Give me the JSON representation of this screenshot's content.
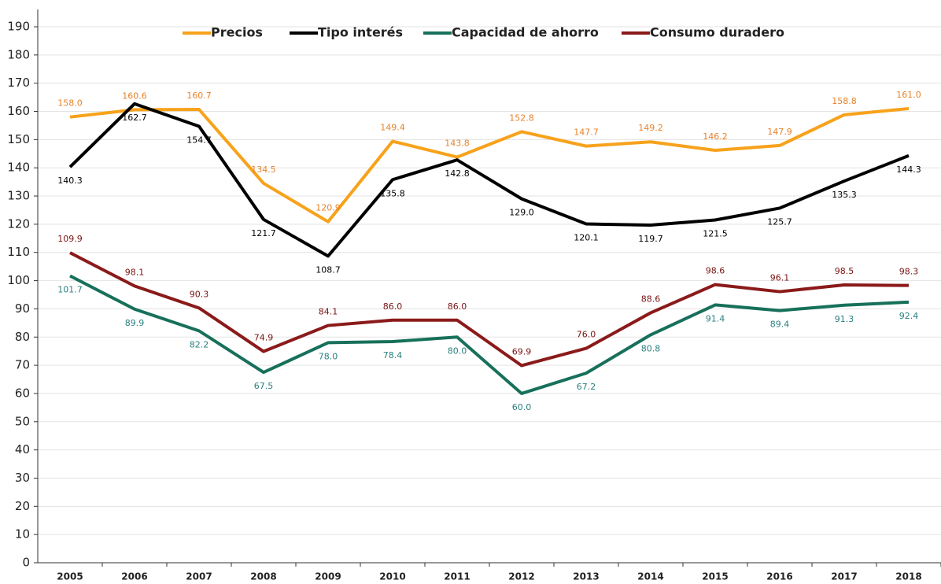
{
  "chart_data": {
    "type": "line",
    "categories": [
      "2005",
      "2006",
      "2007",
      "2008",
      "2009",
      "2010",
      "2011",
      "2012",
      "2013",
      "2014",
      "2015",
      "2016",
      "2017",
      "2018"
    ],
    "ylim": [
      0,
      190
    ],
    "yticks": [
      0,
      10,
      20,
      30,
      40,
      50,
      60,
      70,
      80,
      90,
      100,
      110,
      120,
      130,
      140,
      150,
      160,
      170,
      180,
      190
    ],
    "grid": true,
    "legend": "top",
    "series": [
      {
        "name": "Precios",
        "color": "#f7a21b",
        "label_color": "#e8822a",
        "label_position": "above",
        "values": [
          158.0,
          160.6,
          160.7,
          134.5,
          120.9,
          149.4,
          143.8,
          152.8,
          147.7,
          149.2,
          146.2,
          147.9,
          158.8,
          161.0
        ],
        "value_labels": [
          "158.0",
          "160.6",
          "160.7",
          "134.5",
          "120.9",
          "149.4",
          "143.8",
          "152.8",
          "147.7",
          "149.2",
          "146.2",
          "147.9",
          "158.8",
          "161.0"
        ]
      },
      {
        "name": "Tipo interés",
        "color": "#000000",
        "label_color": "#000000",
        "label_position": "below",
        "values": [
          140.3,
          162.7,
          154.7,
          121.7,
          108.7,
          135.8,
          142.8,
          129.0,
          120.1,
          119.7,
          121.5,
          125.7,
          135.3,
          144.3
        ],
        "value_labels": [
          "140.3",
          "162.7",
          "154.7",
          "121.7",
          "108.7",
          "135.8",
          "142.8",
          "129.0",
          "120.1",
          "119.7",
          "121.5",
          "125.7",
          "135.3",
          "144.3"
        ]
      },
      {
        "name": "Capacidad de ahorro",
        "color": "#17705a",
        "label_color": "#2a7f7f",
        "label_position": "below",
        "values": [
          101.7,
          89.9,
          82.2,
          67.5,
          78.0,
          78.4,
          80.0,
          60.0,
          67.2,
          80.8,
          91.4,
          89.4,
          91.3,
          92.4
        ],
        "value_labels": [
          "101.7",
          "89.9",
          "82.2",
          "67.5",
          "78.0",
          "78.4",
          "80.0",
          "60.0",
          "67.2",
          "80.8",
          "91.4",
          "89.4",
          "91.3",
          "92.4"
        ]
      },
      {
        "name": "Consumo duradero",
        "color": "#8b1a1a",
        "label_color": "#7a1414",
        "label_position": "above",
        "values": [
          109.9,
          98.1,
          90.3,
          74.9,
          84.1,
          86.0,
          86.0,
          69.9,
          76.0,
          88.6,
          98.6,
          96.1,
          98.5,
          98.3
        ],
        "value_labels": [
          "109.9",
          "98.1",
          "90.3",
          "74.9",
          "84.1",
          "86.0",
          "86.0",
          "69.9",
          "76.0",
          "88.6",
          "98.6",
          "96.1",
          "98.5",
          "98.3"
        ]
      }
    ]
  }
}
